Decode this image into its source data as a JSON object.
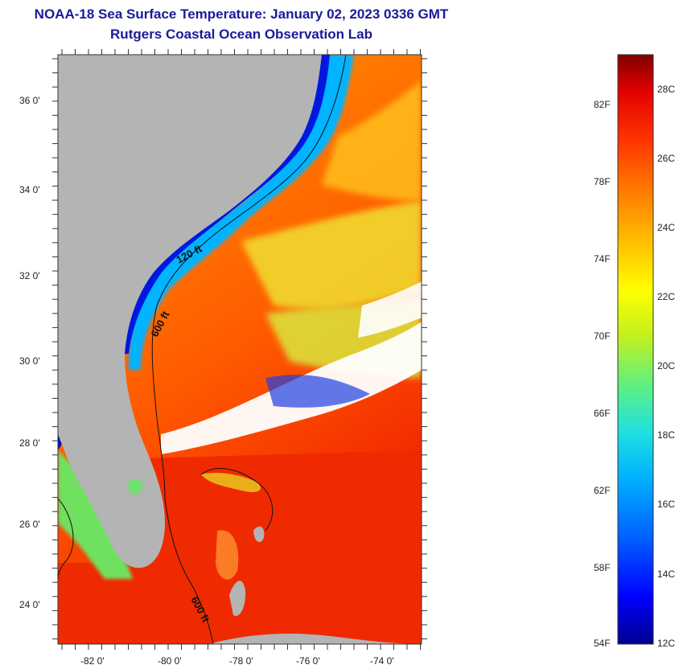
{
  "header": {
    "title_line1": "NOAA-18 Sea Surface Temperature:  January 02, 2023 0336 GMT",
    "title_line2": "Rutgers Coastal Ocean Observation Lab"
  },
  "map": {
    "latitude_labels": [
      "36 0'",
      "34 0'",
      "32 0'",
      "30 0'",
      "28 0'",
      "26 0'",
      "24 0'"
    ],
    "longitude_labels": [
      "-82 0'",
      "-80 0'",
      "-78 0'",
      "-76 0'",
      "-74 0'"
    ],
    "contour_labels": [
      "120 ft",
      "600 ft",
      "600 ft"
    ]
  },
  "colorbar": {
    "fahrenheit_labels": [
      "82F",
      "78F",
      "74F",
      "70F",
      "66F",
      "62F",
      "58F",
      "54F"
    ],
    "celsius_labels": [
      "28C",
      "26C",
      "24C",
      "22C",
      "20C",
      "18C",
      "16C",
      "14C",
      "12C"
    ],
    "min_celsius": 12,
    "max_celsius": 29
  },
  "colors": {
    "title": "#1a1a99",
    "land": "#b4b4b4",
    "cloud": "#ffffff",
    "colorbar_stops": [
      "#00008f",
      "#0000ff",
      "#0060ff",
      "#00b0ff",
      "#20e0e0",
      "#60f080",
      "#c0f020",
      "#ffff00",
      "#ffc000",
      "#ff7a00",
      "#ff3000",
      "#e00000",
      "#800000"
    ]
  }
}
